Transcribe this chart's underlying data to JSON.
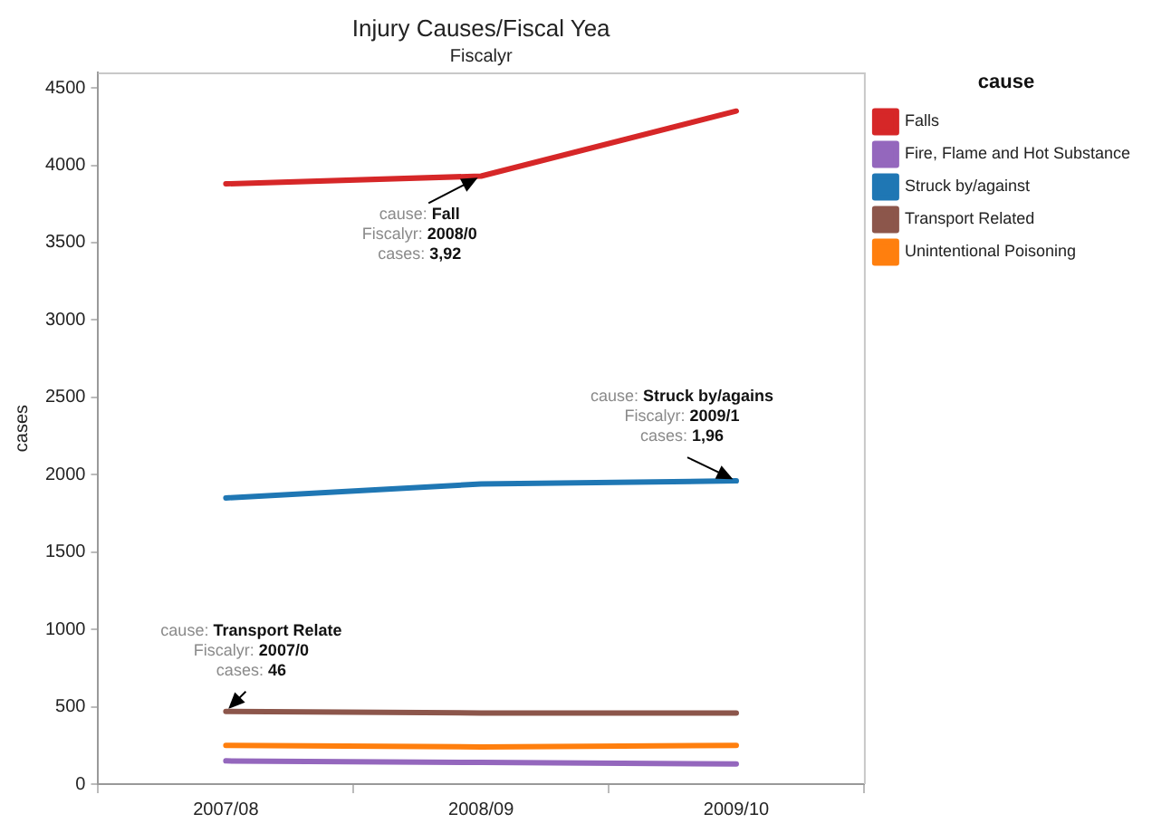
{
  "chart_data": {
    "type": "line",
    "title": "Injury Causes/Fiscal Yea",
    "subtitle": "Fiscalyr",
    "ylabel": "cases",
    "legend_title": "cause",
    "legend": "right",
    "grid": false,
    "categories": [
      "2007/08",
      "2008/09",
      "2009/10"
    ],
    "ylim": [
      0,
      4600
    ],
    "yticks": [
      0,
      500,
      1000,
      1500,
      2000,
      2500,
      3000,
      3500,
      4000,
      4500
    ],
    "series": [
      {
        "name": "Falls",
        "color": "#d62728",
        "values": [
          3880,
          3930,
          4350
        ]
      },
      {
        "name": "Fire, Flame and Hot Substance",
        "color": "#9467bd",
        "values": [
          150,
          140,
          130
        ]
      },
      {
        "name": "Struck by/against",
        "color": "#1f77b4",
        "values": [
          1850,
          1940,
          1960
        ]
      },
      {
        "name": "Transport Related",
        "color": "#8c564b",
        "values": [
          470,
          460,
          460
        ]
      },
      {
        "name": "Unintentional Poisoning",
        "color": "#ff7f0e",
        "values": [
          250,
          240,
          250
        ]
      }
    ],
    "annotations": [
      {
        "text": "cause: Fall\nFiscalyr: 2008/0\ncases: 3,92",
        "x": "2008/09",
        "y": 3930
      },
      {
        "text": "cause: Struck by/agains\nFiscalyr: 2009/1\ncases: 1,96",
        "x": "2009/10",
        "y": 1960
      },
      {
        "text": "cause: Transport Relate\nFiscalyr: 2007/0\ncases: 46",
        "x": "2007/08",
        "y": 470
      }
    ]
  }
}
